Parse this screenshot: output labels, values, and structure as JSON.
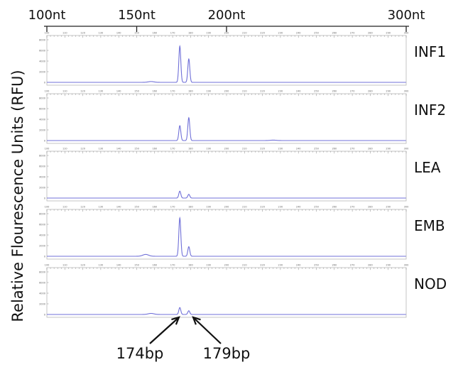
{
  "chart_data": {
    "type": "line",
    "ylabel": "Relative Flourescence Units (RFU)",
    "top_axis": {
      "unit": "nt",
      "ticks": [
        {
          "value": 100,
          "label": "100nt"
        },
        {
          "value": 150,
          "label": "150nt"
        },
        {
          "value": 200,
          "label": "200nt"
        },
        {
          "value": 300,
          "label": "300nt"
        }
      ]
    },
    "panel_axis": {
      "xlim": [
        100,
        300
      ],
      "tick_labels": [
        "100",
        "110",
        "120",
        "130",
        "140",
        "150",
        "160",
        "170",
        "180",
        "190",
        "200",
        "210",
        "220",
        "230",
        "240",
        "250",
        "260",
        "270",
        "280",
        "290",
        "300"
      ],
      "ylim": [
        0,
        8000
      ],
      "y_tick_labels": [
        "0",
        "2000",
        "4000",
        "6000",
        "8000"
      ]
    },
    "series": [
      {
        "name": "INF1",
        "color": "#7070d8",
        "peaks": [
          {
            "x": 174,
            "y": 6800
          },
          {
            "x": 179,
            "y": 4400
          },
          {
            "x": 158,
            "y": 150
          }
        ]
      },
      {
        "name": "INF2",
        "color": "#7070d8",
        "peaks": [
          {
            "x": 174,
            "y": 2800
          },
          {
            "x": 179,
            "y": 4300
          },
          {
            "x": 226,
            "y": 80
          }
        ]
      },
      {
        "name": "LEA",
        "color": "#7070d8",
        "peaks": [
          {
            "x": 174,
            "y": 1300
          },
          {
            "x": 179,
            "y": 700
          }
        ]
      },
      {
        "name": "EMB",
        "color": "#7070d8",
        "peaks": [
          {
            "x": 174,
            "y": 7200
          },
          {
            "x": 179,
            "y": 1800
          },
          {
            "x": 155,
            "y": 350
          }
        ]
      },
      {
        "name": "NOD",
        "color": "#7070d8",
        "peaks": [
          {
            "x": 174,
            "y": 1300
          },
          {
            "x": 179,
            "y": 700
          },
          {
            "x": 158,
            "y": 200
          }
        ]
      }
    ],
    "annotations": [
      {
        "label": "174bp",
        "x": 174
      },
      {
        "label": "179bp",
        "x": 179
      }
    ]
  }
}
